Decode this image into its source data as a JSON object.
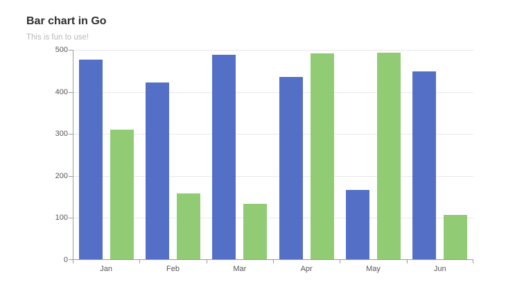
{
  "chart_data": {
    "type": "bar",
    "title": "Bar chart in Go",
    "subtitle": "This is fun to use!",
    "categories": [
      "Jan",
      "Feb",
      "Mar",
      "Apr",
      "May",
      "Jun"
    ],
    "series": [
      {
        "name": "blue",
        "color": "#5470c6",
        "values": [
          477,
          422,
          488,
          436,
          167,
          449
        ]
      },
      {
        "name": "green",
        "color": "#91cc75",
        "values": [
          311,
          158,
          133,
          492,
          493,
          108
        ]
      }
    ],
    "ylim": [
      0,
      500
    ],
    "y_ticks": [
      0,
      100,
      200,
      300,
      400,
      500
    ],
    "grid": true,
    "legend": "none",
    "colors": {
      "bar_blue": "#5470c6",
      "bar_green": "#91cc75",
      "axis_line": "#9a9a9a",
      "grid_line": "#e8e8e8",
      "axis_label": "#555555",
      "title": "#2d2d2d",
      "subtitle": "#b8b8b8",
      "background": "#ffffff"
    }
  }
}
